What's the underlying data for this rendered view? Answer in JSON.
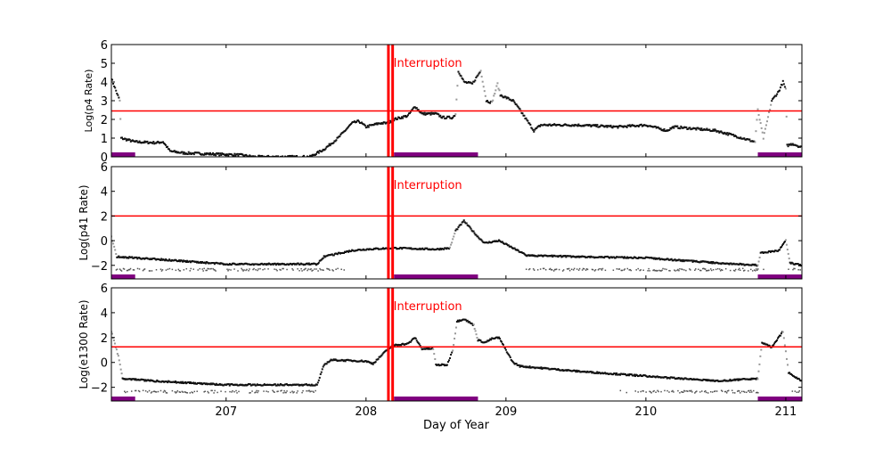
{
  "chart_data": {
    "type": "scatter",
    "xlabel": "Day of Year",
    "xlim": [
      206.18,
      211.115
    ],
    "xticks": [
      207,
      208,
      209,
      210,
      211
    ],
    "xtick_labels": [
      "207",
      "208",
      "209",
      "210",
      "211"
    ],
    "interruption": {
      "label": "Interruption",
      "x": [
        208.16,
        208.19
      ],
      "color": "#ff0000"
    },
    "shaded_bars": {
      "color": "#800080",
      "ranges": [
        [
          206.18,
          206.35
        ],
        [
          208.2,
          208.8
        ],
        [
          210.8,
          211.115
        ]
      ]
    },
    "panels": [
      {
        "ylabel": "Log(p4 Rate)",
        "ylim": [
          0,
          6
        ],
        "yticks": [
          0,
          1,
          2,
          3,
          4,
          5,
          6
        ],
        "ytick_labels": [
          "0",
          "1",
          "2",
          "3",
          "4",
          "5",
          "6"
        ],
        "threshold": 2.45,
        "points": [
          [
            206.18,
            4.2
          ],
          [
            206.24,
            3.0
          ],
          [
            206.25,
            1.0
          ],
          [
            206.35,
            0.8
          ],
          [
            206.5,
            0.75
          ],
          [
            206.55,
            0.8
          ],
          [
            206.6,
            0.3
          ],
          [
            206.7,
            0.2
          ],
          [
            206.9,
            0.15
          ],
          [
            207.1,
            0.1
          ],
          [
            207.2,
            0.0
          ],
          [
            207.6,
            0.0
          ],
          [
            207.7,
            0.4
          ],
          [
            207.8,
            1.0
          ],
          [
            207.9,
            1.8
          ],
          [
            207.95,
            1.9
          ],
          [
            208.0,
            1.6
          ],
          [
            208.1,
            1.8
          ],
          [
            208.16,
            1.8
          ],
          [
            208.2,
            2.0
          ],
          [
            208.3,
            2.2
          ],
          [
            208.35,
            2.7
          ],
          [
            208.4,
            2.3
          ],
          [
            208.5,
            2.3
          ],
          [
            208.55,
            2.1
          ],
          [
            208.62,
            2.1
          ],
          [
            208.64,
            2.3
          ],
          [
            208.66,
            4.6
          ],
          [
            208.7,
            4.0
          ],
          [
            208.76,
            3.9
          ],
          [
            208.82,
            4.6
          ],
          [
            208.86,
            3.0
          ],
          [
            208.9,
            2.9
          ],
          [
            208.94,
            3.9
          ],
          [
            208.96,
            3.3
          ],
          [
            209.05,
            3.0
          ],
          [
            209.1,
            2.5
          ],
          [
            209.2,
            1.4
          ],
          [
            209.25,
            1.7
          ],
          [
            209.5,
            1.7
          ],
          [
            209.8,
            1.6
          ],
          [
            210.0,
            1.7
          ],
          [
            210.15,
            1.4
          ],
          [
            210.2,
            1.6
          ],
          [
            210.5,
            1.4
          ],
          [
            210.6,
            1.2
          ],
          [
            210.78,
            0.8
          ],
          [
            210.8,
            2.5
          ],
          [
            210.84,
            1.0
          ],
          [
            210.9,
            3.0
          ],
          [
            210.95,
            3.5
          ],
          [
            210.98,
            4.0
          ],
          [
            211.0,
            3.6
          ],
          [
            211.01,
            0.6
          ],
          [
            211.05,
            0.7
          ],
          [
            211.115,
            0.5
          ]
        ]
      },
      {
        "ylabel": "Log(p41 Rate)",
        "ylim": [
          -3.1,
          6
        ],
        "yticks": [
          -2,
          0,
          2,
          4,
          6
        ],
        "ytick_labels": [
          "−2",
          "0",
          "2",
          "4",
          "6"
        ],
        "threshold": 2.0,
        "points": [
          [
            206.18,
            0.3
          ],
          [
            206.22,
            -1.3
          ],
          [
            206.5,
            -1.5
          ],
          [
            207.0,
            -1.9
          ],
          [
            207.65,
            -1.9
          ],
          [
            207.7,
            -1.3
          ],
          [
            207.9,
            -0.8
          ],
          [
            208.0,
            -0.7
          ],
          [
            208.2,
            -0.6
          ],
          [
            208.5,
            -0.7
          ],
          [
            208.6,
            -0.6
          ],
          [
            208.64,
            0.8
          ],
          [
            208.7,
            1.6
          ],
          [
            208.8,
            0.3
          ],
          [
            208.85,
            -0.2
          ],
          [
            208.95,
            0.0
          ],
          [
            209.05,
            -0.6
          ],
          [
            209.15,
            -1.2
          ],
          [
            209.5,
            -1.3
          ],
          [
            210.0,
            -1.4
          ],
          [
            210.5,
            -1.8
          ],
          [
            210.8,
            -2.0
          ],
          [
            210.82,
            -1.0
          ],
          [
            210.95,
            -0.8
          ],
          [
            211.0,
            0.0
          ],
          [
            211.03,
            -1.8
          ],
          [
            211.115,
            -2.0
          ]
        ]
      },
      {
        "ylabel": "Log(e1300 Rate)",
        "ylim": [
          -3.1,
          6
        ],
        "yticks": [
          -2,
          0,
          2,
          4,
          6
        ],
        "ytick_labels": [
          "−2",
          "0",
          "2",
          "4",
          "6"
        ],
        "threshold": 1.25,
        "points": [
          [
            206.18,
            2.5
          ],
          [
            206.23,
            0.5
          ],
          [
            206.26,
            -1.3
          ],
          [
            206.5,
            -1.5
          ],
          [
            207.0,
            -1.8
          ],
          [
            207.65,
            -1.8
          ],
          [
            207.7,
            -0.2
          ],
          [
            207.75,
            0.2
          ],
          [
            208.0,
            0.1
          ],
          [
            208.05,
            -0.1
          ],
          [
            208.15,
            1.0
          ],
          [
            208.2,
            1.4
          ],
          [
            208.3,
            1.5
          ],
          [
            208.35,
            2.0
          ],
          [
            208.4,
            1.1
          ],
          [
            208.48,
            1.1
          ],
          [
            208.5,
            -0.2
          ],
          [
            208.58,
            -0.2
          ],
          [
            208.62,
            1.0
          ],
          [
            208.65,
            3.3
          ],
          [
            208.7,
            3.5
          ],
          [
            208.77,
            3.0
          ],
          [
            208.8,
            1.8
          ],
          [
            208.85,
            1.6
          ],
          [
            208.9,
            1.9
          ],
          [
            208.95,
            2.0
          ],
          [
            209.0,
            1.0
          ],
          [
            209.05,
            0.0
          ],
          [
            209.1,
            -0.3
          ],
          [
            209.5,
            -0.7
          ],
          [
            210.0,
            -1.1
          ],
          [
            210.5,
            -1.5
          ],
          [
            210.8,
            -1.3
          ],
          [
            210.83,
            1.6
          ],
          [
            210.9,
            1.2
          ],
          [
            210.98,
            2.5
          ],
          [
            211.02,
            -0.8
          ],
          [
            211.115,
            -1.5
          ]
        ]
      }
    ]
  }
}
